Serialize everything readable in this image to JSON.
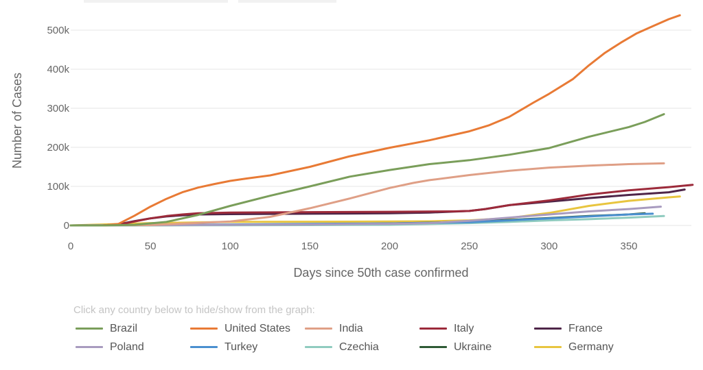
{
  "legend_hint": "Click any country below to hide/show from the graph:",
  "chart_data": {
    "type": "line",
    "title": "",
    "xlabel": "Days since 50th case confirmed",
    "ylabel": "Number of Cases",
    "xlim": [
      0,
      390
    ],
    "ylim": [
      0,
      540000
    ],
    "x_ticks": [
      0,
      50,
      100,
      150,
      200,
      250,
      300,
      350
    ],
    "x_tick_labels": [
      "0",
      "50",
      "100",
      "150",
      "200",
      "250",
      "300",
      "350"
    ],
    "y_ticks": [
      0,
      100000,
      200000,
      300000,
      400000,
      500000
    ],
    "y_tick_labels": [
      "0",
      "100k",
      "200k",
      "300k",
      "400k",
      "500k"
    ],
    "grid": true,
    "legend_placement": "bottom",
    "series": [
      {
        "name": "Brazil",
        "color": "#7a9e5a",
        "x": [
          0,
          20,
          40,
          60,
          80,
          100,
          125,
          150,
          175,
          200,
          225,
          250,
          275,
          300,
          325,
          350,
          360,
          372
        ],
        "y": [
          0,
          0,
          1500,
          9000,
          27000,
          50000,
          76000,
          100000,
          125000,
          142000,
          157000,
          167000,
          181000,
          198000,
          227000,
          252000,
          265000,
          285000
        ]
      },
      {
        "name": "United States",
        "color": "#e87a35",
        "x": [
          0,
          20,
          30,
          40,
          50,
          60,
          70,
          80,
          90,
          100,
          110,
          125,
          150,
          175,
          200,
          225,
          250,
          262,
          275,
          290,
          300,
          315,
          325,
          335,
          345,
          355,
          365,
          375,
          382
        ],
        "y": [
          0,
          0,
          4000,
          25000,
          48000,
          68000,
          85000,
          97000,
          106000,
          114000,
          120000,
          128000,
          150000,
          177000,
          199000,
          218000,
          241000,
          256000,
          278000,
          314000,
          337000,
          375000,
          410000,
          442000,
          468000,
          492000,
          510000,
          528000,
          538000
        ]
      },
      {
        "name": "India",
        "color": "#df9f86",
        "x": [
          0,
          50,
          100,
          125,
          150,
          175,
          200,
          215,
          225,
          250,
          275,
          300,
          325,
          350,
          372
        ],
        "y": [
          0,
          1000,
          10000,
          22000,
          44000,
          69000,
          96000,
          109000,
          116000,
          129000,
          140000,
          148000,
          153000,
          157000,
          159000
        ]
      },
      {
        "name": "Italy",
        "color": "#9c2a3a",
        "x": [
          0,
          20,
          30,
          40,
          50,
          60,
          70,
          80,
          100,
          150,
          200,
          240,
          250,
          260,
          275,
          300,
          325,
          350,
          375,
          390
        ],
        "y": [
          0,
          0,
          2000,
          10000,
          18000,
          24000,
          28000,
          31000,
          33000,
          34000,
          35000,
          36000,
          37000,
          42000,
          52000,
          64000,
          79000,
          90000,
          98000,
          104000
        ]
      },
      {
        "name": "France",
        "color": "#4e2548",
        "x": [
          0,
          20,
          30,
          40,
          50,
          60,
          70,
          80,
          100,
          150,
          200,
          225,
          250,
          260,
          275,
          300,
          325,
          350,
          375,
          385
        ],
        "y": [
          0,
          0,
          3000,
          11000,
          18000,
          23000,
          26000,
          28000,
          29000,
          30000,
          31000,
          33000,
          37000,
          42000,
          52000,
          61000,
          70000,
          78000,
          85000,
          92000
        ]
      },
      {
        "name": "Poland",
        "color": "#a89bbf",
        "x": [
          0,
          100,
          150,
          200,
          225,
          250,
          275,
          300,
          325,
          350,
          370
        ],
        "y": [
          0,
          1500,
          2500,
          4000,
          6000,
          12000,
          20000,
          28000,
          36000,
          42000,
          48000
        ]
      },
      {
        "name": "Turkey",
        "color": "#4a8fcf",
        "x": [
          0,
          100,
          150,
          200,
          250,
          275,
          300,
          325,
          350,
          365
        ],
        "y": [
          0,
          2500,
          4000,
          5000,
          8000,
          13000,
          18000,
          23000,
          28000,
          30000
        ]
      },
      {
        "name": "Czechia",
        "color": "#8fcbbf",
        "x": [
          0,
          100,
          150,
          200,
          250,
          275,
          300,
          325,
          350,
          372
        ],
        "y": [
          0,
          500,
          800,
          1500,
          6000,
          9000,
          13000,
          16000,
          20000,
          24000
        ]
      },
      {
        "name": "Ukraine",
        "color": "#2e5a35",
        "x": [
          0,
          100,
          150,
          200,
          225,
          250,
          275,
          300,
          325,
          350,
          360
        ],
        "y": [
          0,
          1000,
          2500,
          5000,
          7000,
          10000,
          14000,
          19000,
          24000,
          28000,
          31000
        ]
      },
      {
        "name": "Germany",
        "color": "#e8c53f",
        "x": [
          0,
          50,
          100,
          150,
          200,
          225,
          250,
          275,
          300,
          325,
          350,
          375,
          382
        ],
        "y": [
          0,
          6000,
          9000,
          9500,
          10000,
          10500,
          13000,
          19000,
          32000,
          50000,
          63000,
          72000,
          74000
        ]
      }
    ]
  }
}
